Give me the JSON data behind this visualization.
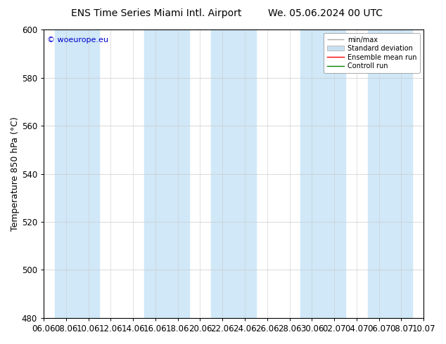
{
  "title_left": "ENS Time Series Miami Intl. Airport",
  "title_right": "We. 05.06.2024 00 UTC",
  "ylabel": "Temperature 850 hPa (°C)",
  "ylim": [
    480,
    600
  ],
  "yticks": [
    480,
    500,
    520,
    540,
    560,
    580,
    600
  ],
  "xtick_labels": [
    "06.06",
    "08.06",
    "10.06",
    "12.06",
    "14.06",
    "16.06",
    "18.06",
    "20.06",
    "22.06",
    "24.06",
    "26.06",
    "28.06",
    "30.06",
    "02.07",
    "04.07",
    "06.07",
    "08.07",
    "10.07"
  ],
  "watermark": "© woeurope.eu",
  "watermark_color": "#0000cc",
  "bg_color": "#ffffff",
  "plot_bg_color": "#ffffff",
  "band_color": "#d0e8f8",
  "band_alpha": 1.0,
  "legend_items": [
    {
      "label": "min/max",
      "color": "#aaaaaa",
      "lw": 1.0
    },
    {
      "label": "Standard deviation",
      "color": "#c8dff0",
      "lw": 6
    },
    {
      "label": "Ensemble mean run",
      "color": "#ff0000",
      "lw": 1.0
    },
    {
      "label": "Controll run",
      "color": "#008800",
      "lw": 1.0
    }
  ],
  "title_fontsize": 10,
  "axis_fontsize": 9,
  "tick_fontsize": 8.5
}
